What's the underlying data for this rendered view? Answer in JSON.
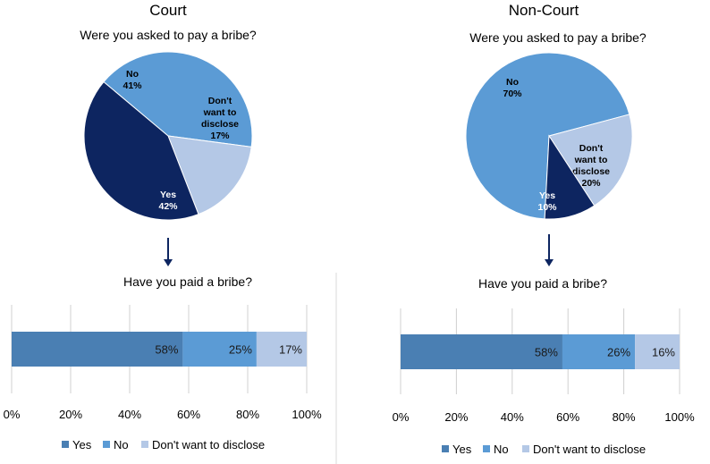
{
  "colors": {
    "yes_pie": "#0d2560",
    "no_pie": "#5b9bd5",
    "dont_pie": "#b4c8e6",
    "yes_bar": "#4a7fb3",
    "no_bar": "#5b9bd5",
    "dont_bar": "#b4c8e6",
    "arrow": "#0d2560",
    "grid": "#d0d0d0"
  },
  "panels": [
    {
      "title": "Court",
      "pie_question": "Were you asked to pay a bribe?",
      "bar_question": "Have you paid a bribe?"
    },
    {
      "title": "Non-Court",
      "pie_question": "Were you asked to pay a bribe?",
      "bar_question": "Have you paid a bribe?"
    }
  ],
  "legend": [
    "Yes",
    "No",
    "Don't want to disclose"
  ],
  "chart_data": [
    {
      "type": "pie",
      "title": "Were you asked to pay a bribe?",
      "slices": [
        {
          "label": [
            "No",
            "41%"
          ],
          "category": "no",
          "value": 41
        },
        {
          "label": [
            "Don't",
            "want to",
            "disclose",
            "17%"
          ],
          "category": "dont",
          "value": 17
        },
        {
          "label": [
            "Yes",
            "42%"
          ],
          "category": "yes",
          "value": 42
        }
      ]
    },
    {
      "type": "bar",
      "orientation": "horizontal-stacked",
      "title": "Have you paid a bribe?",
      "segments": [
        {
          "category": "yes",
          "value": 58,
          "label": "58%"
        },
        {
          "category": "no",
          "value": 25,
          "label": "25%"
        },
        {
          "category": "dont",
          "value": 17,
          "label": "17%"
        }
      ],
      "xlim": [
        0,
        100
      ],
      "ticks": [
        "0%",
        "20%",
        "40%",
        "60%",
        "80%",
        "100%"
      ],
      "grid": true,
      "legend_position": "bottom"
    },
    {
      "type": "pie",
      "title": "Were you asked to pay a bribe?",
      "slices": [
        {
          "label": [
            "No",
            "70%"
          ],
          "category": "no",
          "value": 70
        },
        {
          "label": [
            "Don't",
            "want to",
            "disclose",
            "20%"
          ],
          "category": "dont",
          "value": 20
        },
        {
          "label": [
            "Yes",
            "10%"
          ],
          "category": "yes",
          "value": 10
        }
      ]
    },
    {
      "type": "bar",
      "orientation": "horizontal-stacked",
      "title": "Have you paid a bribe?",
      "segments": [
        {
          "category": "yes",
          "value": 58,
          "label": "58%"
        },
        {
          "category": "no",
          "value": 26,
          "label": "26%"
        },
        {
          "category": "dont",
          "value": 16,
          "label": "16%"
        }
      ],
      "xlim": [
        0,
        100
      ],
      "ticks": [
        "0%",
        "20%",
        "40%",
        "60%",
        "80%",
        "100%"
      ],
      "grid": true,
      "legend_position": "bottom"
    }
  ]
}
